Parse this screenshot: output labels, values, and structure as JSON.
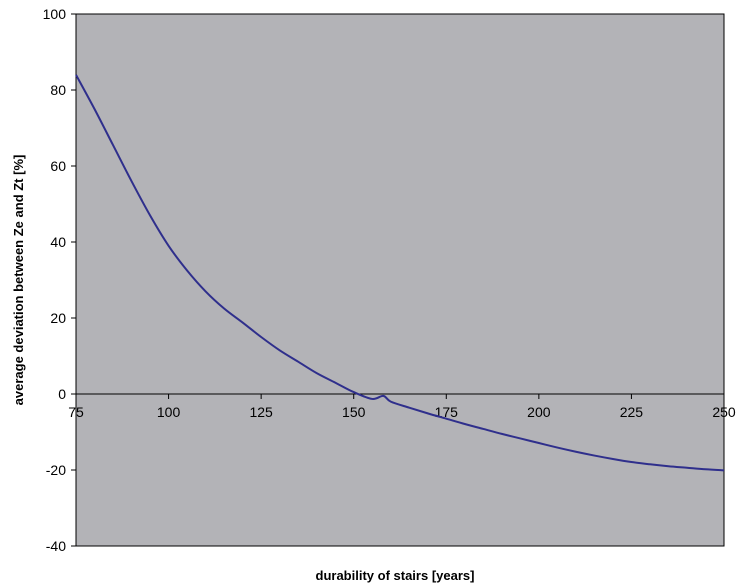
{
  "chart_data": {
    "type": "line",
    "title": "",
    "xlabel": "durability of stairs [years]",
    "ylabel": "average deviation between Ze and Zt [%]",
    "xlim": [
      75,
      250
    ],
    "ylim": [
      -40,
      100
    ],
    "xticks": [
      75,
      100,
      125,
      150,
      175,
      200,
      225,
      250
    ],
    "yticks": [
      -40,
      -20,
      0,
      20,
      40,
      60,
      80,
      100
    ],
    "grid": false,
    "legend": "none",
    "colors": {
      "plot_background": "#b3b3b7",
      "line": "#2f2f8c",
      "axis": "#000000"
    },
    "series": [
      {
        "x": [
          75,
          80,
          85,
          90,
          95,
          100,
          105,
          110,
          115,
          120,
          125,
          130,
          135,
          140,
          145,
          150,
          155,
          158,
          160,
          165,
          170,
          175,
          180,
          185,
          190,
          195,
          200,
          205,
          210,
          215,
          220,
          225,
          230,
          235,
          240,
          245,
          250
        ],
        "y": [
          84,
          75,
          65.5,
          56,
          47,
          39,
          32.5,
          27,
          22.5,
          18.8,
          15,
          11.5,
          8.5,
          5.5,
          3,
          0.5,
          -1.3,
          -0.5,
          -2,
          -3.6,
          -5.1,
          -6.5,
          -7.9,
          -9.2,
          -10.5,
          -11.7,
          -12.9,
          -14.1,
          -15.2,
          -16.2,
          -17.1,
          -17.9,
          -18.5,
          -19,
          -19.4,
          -19.8,
          -20.1
        ]
      }
    ]
  }
}
